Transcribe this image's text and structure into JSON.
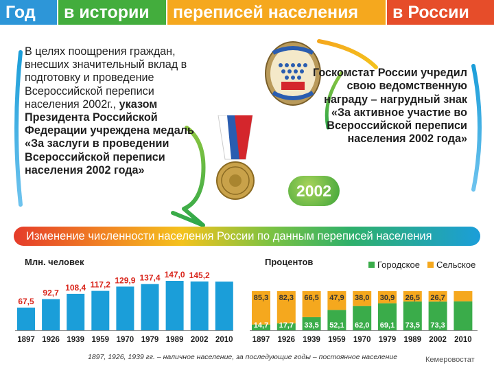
{
  "header": {
    "segments": [
      "Год",
      "в истории",
      "переписей населения",
      "в России"
    ],
    "colors": [
      "#2d96d8",
      "#43ad3d",
      "#f5a81e",
      "#e64d2a"
    ]
  },
  "left_text": {
    "plain": "В целях поощрения граждан, внесших значительный вклад в подготовку и проведение Всероссийской переписи населения 2002г.,",
    "bold": "указом Президента Российской Федерации учреждена медаль «За заслуги в проведении Всероссийской переписи населения 2002 года»"
  },
  "right_text": "Госкомстат России учредил свою ведомственную награду – нагрудный знак «За активное участие во Всероссийской переписи населения 2002 года»",
  "badge_year": "2002",
  "banner": "Изменение численности населения России по данным переписей населения",
  "chart_data": [
    {
      "type": "bar",
      "ylabel": "Млн. человек",
      "categories": [
        "1897",
        "1926",
        "1939",
        "1959",
        "1970",
        "1979",
        "1989",
        "2002",
        "2010"
      ],
      "values": [
        67.5,
        92.7,
        108.4,
        117.2,
        129.9,
        137.4,
        147.0,
        145.2,
        null
      ],
      "value_labels": [
        "67,5",
        "92,7",
        "108,4",
        "117,2",
        "129,9",
        "137,4",
        "147,0",
        "145,2",
        ""
      ],
      "color": "#1b9ed9",
      "label_color": "#d9261c"
    },
    {
      "type": "bar",
      "stacked": true,
      "ylabel": "Процентов",
      "categories": [
        "1897",
        "1926",
        "1939",
        "1959",
        "1970",
        "1979",
        "1989",
        "2002",
        "2010"
      ],
      "series": [
        {
          "name": "Городское",
          "color": "#3aac4a",
          "values": [
            14.7,
            17.7,
            33.5,
            52.1,
            62.0,
            69.1,
            73.5,
            73.3,
            null
          ],
          "labels": [
            "14,7",
            "17,7",
            "33,5",
            "52,1",
            "62,0",
            "69,1",
            "73,5",
            "73,3",
            ""
          ]
        },
        {
          "name": "Сельское",
          "color": "#f5a81e",
          "values": [
            85.3,
            82.3,
            66.5,
            47.9,
            38.0,
            30.9,
            26.5,
            26.7,
            null
          ],
          "labels": [
            "85,3",
            "82,3",
            "66,5",
            "47,9",
            "38,0",
            "30,9",
            "26,5",
            "26,7",
            ""
          ]
        }
      ],
      "legend": "top-right"
    }
  ],
  "footnote": "1897, 1926, 1939 гг. – наличное население, за последующие годы – постоянное население",
  "credit": "Кемеровостат"
}
